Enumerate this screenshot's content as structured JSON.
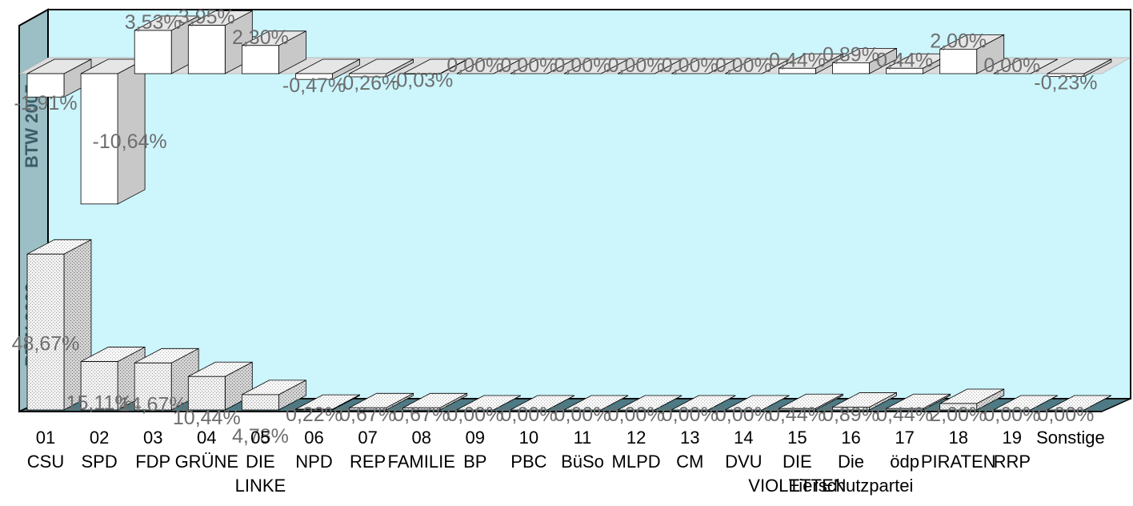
{
  "chart_data": {
    "type": "bar",
    "title": "",
    "xlabel": "",
    "ylabel": "",
    "categories": [
      {
        "num": "01",
        "name": [
          "CSU"
        ]
      },
      {
        "num": "02",
        "name": [
          "SPD"
        ]
      },
      {
        "num": "03",
        "name": [
          "FDP"
        ]
      },
      {
        "num": "04",
        "name": [
          "GRÜNE"
        ]
      },
      {
        "num": "05",
        "name": [
          "DIE",
          "LINKE"
        ]
      },
      {
        "num": "06",
        "name": [
          "NPD"
        ]
      },
      {
        "num": "07",
        "name": [
          "REP"
        ]
      },
      {
        "num": "08",
        "name": [
          "FAMILIE"
        ]
      },
      {
        "num": "09",
        "name": [
          "BP"
        ]
      },
      {
        "num": "10",
        "name": [
          "PBC"
        ]
      },
      {
        "num": "11",
        "name": [
          "BüSo"
        ]
      },
      {
        "num": "12",
        "name": [
          "MLPD"
        ]
      },
      {
        "num": "13",
        "name": [
          "CM"
        ]
      },
      {
        "num": "14",
        "name": [
          "DVU"
        ]
      },
      {
        "num": "15",
        "name": [
          "DIE",
          "VIOLETTEN"
        ]
      },
      {
        "num": "16",
        "name": [
          "Die",
          "Tierschutzpartei"
        ]
      },
      {
        "num": "17",
        "name": [
          "ödp"
        ]
      },
      {
        "num": "18",
        "name": [
          "PIRATEN"
        ]
      },
      {
        "num": "19",
        "name": [
          "RRP"
        ]
      },
      {
        "num": "",
        "name": [
          "Sonstige"
        ]
      }
    ],
    "series": [
      {
        "name": "BTW 2005",
        "values": [
          -1.91,
          -10.64,
          3.53,
          3.95,
          2.3,
          -0.47,
          -0.26,
          -0.03,
          0.0,
          0.0,
          0.0,
          0.0,
          0.0,
          0.0,
          0.44,
          0.89,
          0.44,
          2.0,
          0.0,
          -0.23
        ],
        "labels": [
          "-1,91%",
          "-10,64%",
          "3,53%",
          "3,95%",
          "2,30%",
          "-0,47%",
          "-0,26%",
          "-0,03%",
          "0,00%",
          "0,00%",
          "0,00%",
          "0,00%",
          "0,00%",
          "0,00%",
          "0,44%",
          "0,89%",
          "0,44%",
          "2,00%",
          "0,00%",
          "-0,23%"
        ]
      },
      {
        "name": "BTW 2009",
        "values": [
          48.67,
          15.11,
          14.67,
          10.44,
          4.78,
          0.22,
          0.67,
          0.67,
          0.0,
          0.0,
          0.0,
          0.0,
          0.0,
          0.0,
          0.44,
          0.89,
          0.44,
          2.0,
          0.0,
          0.0
        ],
        "labels": [
          "48,67%",
          "15,11%",
          "14,67%",
          "10,44%",
          "4,78%",
          "0,22%",
          "0,67%",
          "0,67%",
          "0,00%",
          "0,00%",
          "0,00%",
          "0,00%",
          "0,00%",
          "0,00%",
          "0,44%",
          "0,89%",
          "0,44%",
          "2,00%",
          "0,00%",
          "0,00%"
        ]
      }
    ],
    "grid": false,
    "legend": "none",
    "colors": {
      "wall": "#ccf5fc",
      "wall_side": "#9cbfc6",
      "floor": "#4d7a84",
      "bar_2005": "#ffffff",
      "bar_2009": "#eeeeee",
      "value_label": "#6e6e6e",
      "series_label": "#3c5e68"
    }
  }
}
